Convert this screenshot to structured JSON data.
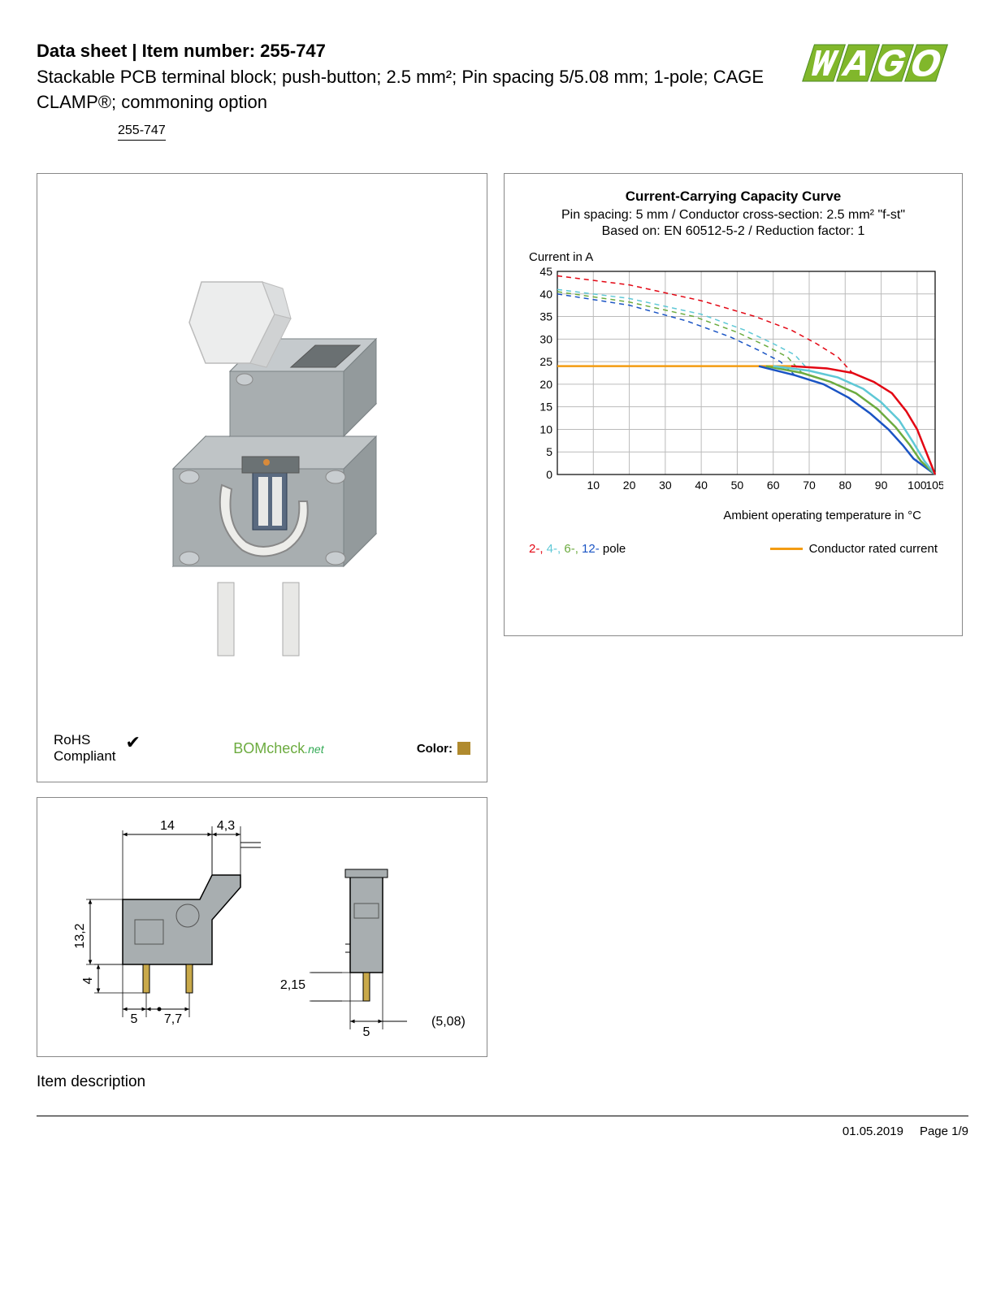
{
  "header": {
    "title_prefix": "Data sheet",
    "title_sep": "  |  ",
    "title_item_label": "Item number:",
    "item_number": "255-747",
    "subtitle": "Stackable PCB terminal block; push-button; 2.5 mm²; Pin spacing 5/5.08 mm; 1-pole; CAGE CLAMP®; commoning option",
    "item_link": "255-747",
    "logo_text": "WAGO",
    "logo_color": "#81b72b",
    "logo_outline": "#4a8a1f"
  },
  "product_panel": {
    "rohs_label": "RoHS",
    "rohs_compliant": "Compliant",
    "bomcheck_main": "BOMcheck",
    "bomcheck_suffix": ".net",
    "color_label": "Color:",
    "color_swatch": "#b08a2e",
    "product_color": "#a8aeb0",
    "product_dark": "#7a8184",
    "product_light": "#d5d8d9"
  },
  "chart": {
    "title": "Current-Carrying Capacity Curve",
    "subtitle1": "Pin spacing: 5 mm / Conductor cross-section: 2.5 mm² \"f-st\"",
    "subtitle2": "Based on: EN 60512-5-2 / Reduction factor: 1",
    "y_axis_label": "Current in A",
    "x_axis_label": "Ambient operating temperature in °C",
    "ylim": [
      0,
      45
    ],
    "ytick_step": 5,
    "y_ticks": [
      0,
      5,
      10,
      15,
      20,
      25,
      30,
      35,
      40,
      45
    ],
    "xlim": [
      0,
      105
    ],
    "x_ticks": [
      10,
      20,
      30,
      40,
      50,
      60,
      70,
      80,
      90,
      100,
      105
    ],
    "grid_color": "#bbbbbb",
    "background": "#ffffff",
    "x_end": 105,
    "series": {
      "rated_current": {
        "color": "#f39c12",
        "width": 2.5,
        "data": [
          [
            0,
            24
          ],
          [
            65,
            24
          ]
        ]
      },
      "pole2_solid": {
        "color": "#e30613",
        "width": 2.5,
        "data": [
          [
            65,
            24
          ],
          [
            75,
            23.5
          ],
          [
            82,
            22.5
          ],
          [
            88,
            20.5
          ],
          [
            93,
            18
          ],
          [
            97,
            14
          ],
          [
            100,
            10
          ],
          [
            102,
            6
          ],
          [
            104,
            2
          ],
          [
            105,
            0
          ]
        ]
      },
      "pole2_dash": {
        "color": "#e30613",
        "width": 1.5,
        "dash": "6,5",
        "data": [
          [
            0,
            44
          ],
          [
            20,
            42
          ],
          [
            40,
            38.5
          ],
          [
            55,
            35
          ],
          [
            65,
            32
          ],
          [
            72,
            29
          ],
          [
            78,
            26
          ],
          [
            82,
            22.5
          ]
        ]
      },
      "pole4_solid": {
        "color": "#5fc8d6",
        "width": 2.5,
        "data": [
          [
            60,
            24
          ],
          [
            70,
            23
          ],
          [
            78,
            21.5
          ],
          [
            85,
            19
          ],
          [
            90,
            16
          ],
          [
            95,
            12
          ],
          [
            99,
            7
          ],
          [
            102,
            3
          ],
          [
            105,
            0
          ]
        ]
      },
      "pole4_dash": {
        "color": "#5fc8d6",
        "width": 1.5,
        "dash": "6,5",
        "data": [
          [
            0,
            41
          ],
          [
            20,
            39
          ],
          [
            40,
            35.5
          ],
          [
            52,
            32
          ],
          [
            60,
            29
          ],
          [
            66,
            26.5
          ],
          [
            70,
            23
          ]
        ]
      },
      "pole6_solid": {
        "color": "#6cab3f",
        "width": 2.5,
        "data": [
          [
            58,
            24
          ],
          [
            68,
            22.5
          ],
          [
            76,
            20.5
          ],
          [
            83,
            18
          ],
          [
            89,
            14.5
          ],
          [
            94,
            10.5
          ],
          [
            98,
            6.5
          ],
          [
            101,
            3
          ],
          [
            105,
            0
          ]
        ]
      },
      "pole6_dash": {
        "color": "#6cab3f",
        "width": 1.5,
        "dash": "6,5",
        "data": [
          [
            0,
            40.5
          ],
          [
            20,
            38.2
          ],
          [
            38,
            35
          ],
          [
            50,
            31.5
          ],
          [
            58,
            28.5
          ],
          [
            64,
            26
          ],
          [
            68,
            22.5
          ]
        ]
      },
      "pole12_solid": {
        "color": "#1a54c4",
        "width": 2.5,
        "data": [
          [
            56,
            24
          ],
          [
            66,
            22
          ],
          [
            74,
            20
          ],
          [
            81,
            17
          ],
          [
            87,
            13.5
          ],
          [
            92,
            10
          ],
          [
            96,
            6.5
          ],
          [
            99,
            3.5
          ],
          [
            105,
            0
          ]
        ]
      },
      "pole12_dash": {
        "color": "#1a54c4",
        "width": 1.5,
        "dash": "6,5",
        "data": [
          [
            0,
            40
          ],
          [
            20,
            37.5
          ],
          [
            36,
            34
          ],
          [
            48,
            30.5
          ],
          [
            56,
            27.5
          ],
          [
            62,
            25
          ],
          [
            66,
            22
          ]
        ]
      }
    },
    "legend": {
      "pole2": {
        "text": "2-,",
        "color": "#e30613"
      },
      "pole4": {
        "text": " 4-,",
        "color": "#5fc8d6"
      },
      "pole6": {
        "text": " 6-,",
        "color": "#6cab3f"
      },
      "pole12": {
        "text": " 12-",
        "color": "#1a54c4"
      },
      "pole_suffix": " pole",
      "rated_label": "Conductor rated current",
      "rated_color": "#f39c12"
    }
  },
  "dimensions": {
    "dim_14": "14",
    "dim_4_3": "4,3",
    "dim_13_2": "13,2",
    "dim_4": "4",
    "dim_5": "5",
    "dim_7_7": "7,7",
    "dim_2_15": "2,15",
    "dim_5b": "5",
    "dim_5_08": "(5,08)",
    "body_color": "#a8aeb0",
    "outline_color": "#000000"
  },
  "section": {
    "description_heading": "Item description"
  },
  "footer": {
    "date": "01.05.2019",
    "page": "Page 1/9"
  }
}
